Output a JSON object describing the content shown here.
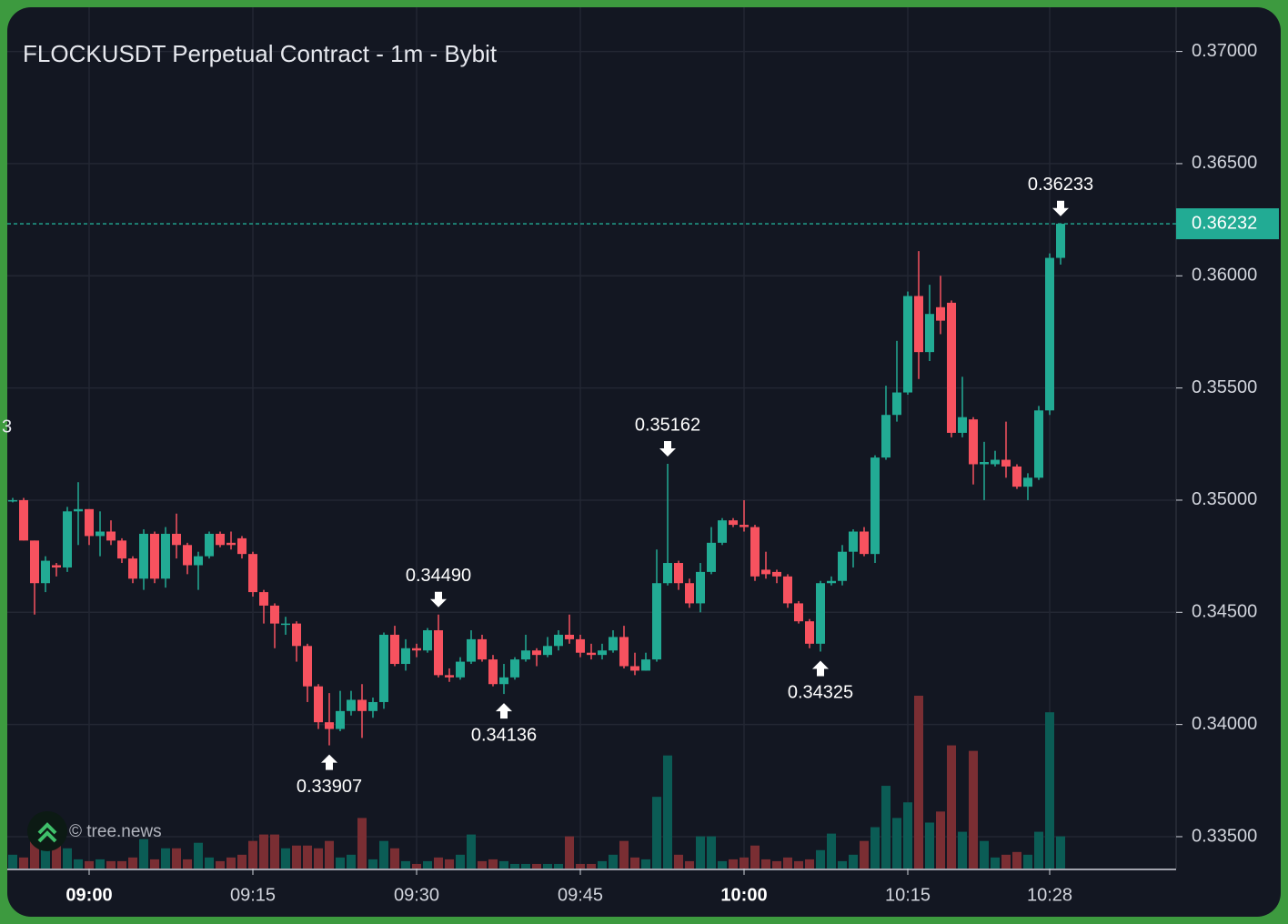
{
  "chart_data": {
    "type": "candlestick",
    "title": "FLOCKUSDT Perpetual Contract - 1m - Bybit",
    "watermark": "© tree.news",
    "left_edge_text": "3",
    "up_color": "#22ab94",
    "down_color": "#f7525f",
    "up_volume_color": "#0b5c55",
    "down_volume_color": "#7a2e33",
    "grid": true,
    "ylim": [
      0.33358,
      0.37197
    ],
    "yticks": [
      {
        "value": 0.335,
        "label": "0.33500"
      },
      {
        "value": 0.34,
        "label": "0.34000"
      },
      {
        "value": 0.345,
        "label": "0.34500"
      },
      {
        "value": 0.35,
        "label": "0.35000"
      },
      {
        "value": 0.355,
        "label": "0.35500"
      },
      {
        "value": 0.36,
        "label": "0.36000"
      },
      {
        "value": 0.365,
        "label": "0.36500"
      },
      {
        "value": 0.37,
        "label": "0.37000"
      }
    ],
    "xticks": [
      {
        "value": "09:00",
        "label": "09:00",
        "bold": true
      },
      {
        "value": "09:15",
        "label": "09:15"
      },
      {
        "value": "09:30",
        "label": "09:30"
      },
      {
        "value": "09:45",
        "label": "09:45"
      },
      {
        "value": "10:00",
        "label": "10:00",
        "bold": true
      },
      {
        "value": "10:15",
        "label": "10:15"
      },
      {
        "value": "10:28",
        "label": "10:28"
      }
    ],
    "last_price": {
      "value": 0.36232,
      "label": "0.36232"
    },
    "annotations": [
      {
        "value": 0.33907,
        "label": "0.33907",
        "x": "09:22",
        "position": "below"
      },
      {
        "value": 0.3449,
        "label": "0.34490",
        "x": "09:32",
        "position": "above"
      },
      {
        "value": 0.34136,
        "label": "0.34136",
        "x": "09:38",
        "position": "below"
      },
      {
        "value": 0.35162,
        "label": "0.35162",
        "x": "09:53",
        "position": "above"
      },
      {
        "value": 0.34325,
        "label": "0.34325",
        "x": "10:07",
        "position": "below"
      },
      {
        "value": 0.36233,
        "label": "0.36233",
        "x": "10:29",
        "position": "above"
      }
    ],
    "x": [
      "08:53",
      "08:54",
      "08:55",
      "08:56",
      "08:57",
      "08:58",
      "08:59",
      "09:00",
      "09:01",
      "09:02",
      "09:03",
      "09:04",
      "09:05",
      "09:06",
      "09:07",
      "09:08",
      "09:09",
      "09:10",
      "09:11",
      "09:12",
      "09:13",
      "09:14",
      "09:15",
      "09:16",
      "09:17",
      "09:18",
      "09:19",
      "09:20",
      "09:21",
      "09:22",
      "09:23",
      "09:24",
      "09:25",
      "09:26",
      "09:27",
      "09:28",
      "09:29",
      "09:30",
      "09:31",
      "09:32",
      "09:33",
      "09:34",
      "09:35",
      "09:36",
      "09:37",
      "09:38",
      "09:39",
      "09:40",
      "09:41",
      "09:42",
      "09:43",
      "09:44",
      "09:45",
      "09:46",
      "09:47",
      "09:48",
      "09:49",
      "09:50",
      "09:51",
      "09:52",
      "09:53",
      "09:54",
      "09:55",
      "09:56",
      "09:57",
      "09:58",
      "09:59",
      "10:00",
      "10:01",
      "10:02",
      "10:03",
      "10:04",
      "10:05",
      "10:06",
      "10:07",
      "10:08",
      "10:09",
      "10:10",
      "10:11",
      "10:12",
      "10:13",
      "10:14",
      "10:15",
      "10:16",
      "10:17",
      "10:18",
      "10:19",
      "10:20",
      "10:21",
      "10:22",
      "10:23",
      "10:24",
      "10:25",
      "10:26",
      "10:27",
      "10:28",
      "10:29"
    ],
    "open": [
      0.35,
      0.35,
      0.3482,
      0.3463,
      0.3471,
      0.347,
      0.3495,
      0.3496,
      0.3484,
      0.3486,
      0.3482,
      0.3474,
      0.3465,
      0.3485,
      0.3465,
      0.3485,
      0.348,
      0.3471,
      0.3475,
      0.3485,
      0.3481,
      0.3483,
      0.3476,
      0.3459,
      0.3453,
      0.3445,
      0.3445,
      0.3435,
      0.3417,
      0.3401,
      0.3398,
      0.3406,
      0.3411,
      0.3406,
      0.341,
      0.344,
      0.3427,
      0.3434,
      0.3433,
      0.3442,
      0.3422,
      0.3421,
      0.3428,
      0.3438,
      0.3429,
      0.3418,
      0.3421,
      0.3429,
      0.3433,
      0.3431,
      0.3435,
      0.344,
      0.3438,
      0.3432,
      0.3431,
      0.3433,
      0.3439,
      0.3426,
      0.3424,
      0.3429,
      0.3463,
      0.3472,
      0.3463,
      0.3454,
      0.3468,
      0.3481,
      0.3491,
      0.3489,
      0.3488,
      0.3469,
      0.3468,
      0.3466,
      0.3454,
      0.3446,
      0.3436,
      0.3463,
      0.3464,
      0.3477,
      0.3486,
      0.3476,
      0.3519,
      0.3538,
      0.3548,
      0.3591,
      0.3566,
      0.3586,
      0.3588,
      0.353,
      0.3536,
      0.3516,
      0.3516,
      0.3518,
      0.3515,
      0.3506,
      0.351,
      0.354,
      0.3608
    ],
    "high": [
      0.3501,
      0.3501,
      0.3482,
      0.3475,
      0.3472,
      0.3497,
      0.3508,
      0.3496,
      0.3495,
      0.3491,
      0.3483,
      0.3475,
      0.3487,
      0.3486,
      0.3488,
      0.3494,
      0.3481,
      0.3477,
      0.3486,
      0.3486,
      0.3486,
      0.3484,
      0.3477,
      0.346,
      0.3454,
      0.3448,
      0.3446,
      0.3436,
      0.3418,
      0.3414,
      0.3415,
      0.3415,
      0.3418,
      0.3412,
      0.3441,
      0.3444,
      0.3438,
      0.3436,
      0.3443,
      0.3449,
      0.3425,
      0.343,
      0.3442,
      0.344,
      0.3431,
      0.3427,
      0.343,
      0.344,
      0.3434,
      0.3439,
      0.3442,
      0.3449,
      0.344,
      0.3436,
      0.3436,
      0.3442,
      0.3444,
      0.3432,
      0.3432,
      0.3478,
      0.35162,
      0.3473,
      0.3465,
      0.3472,
      0.3488,
      0.3492,
      0.3492,
      0.35,
      0.3489,
      0.3477,
      0.3469,
      0.3467,
      0.3455,
      0.3447,
      0.3464,
      0.3466,
      0.348,
      0.3487,
      0.3488,
      0.352,
      0.3551,
      0.3571,
      0.3593,
      0.3611,
      0.3596,
      0.36,
      0.3589,
      0.3555,
      0.3537,
      0.3526,
      0.3522,
      0.3535,
      0.3516,
      0.3512,
      0.3542,
      0.361,
      0.36233
    ],
    "low": [
      0.3499,
      0.3482,
      0.3449,
      0.3459,
      0.3466,
      0.3468,
      0.348,
      0.348,
      0.3475,
      0.348,
      0.3472,
      0.3463,
      0.346,
      0.3463,
      0.3461,
      0.3474,
      0.3467,
      0.346,
      0.3474,
      0.3479,
      0.3478,
      0.3474,
      0.3457,
      0.3445,
      0.3434,
      0.344,
      0.3428,
      0.341,
      0.3398,
      0.33907,
      0.3397,
      0.3404,
      0.3394,
      0.3403,
      0.3407,
      0.3426,
      0.3424,
      0.343,
      0.3432,
      0.3421,
      0.3419,
      0.342,
      0.3427,
      0.3428,
      0.3417,
      0.34136,
      0.342,
      0.3428,
      0.3426,
      0.343,
      0.3433,
      0.3436,
      0.343,
      0.3429,
      0.3429,
      0.3432,
      0.3425,
      0.3422,
      0.3424,
      0.3428,
      0.3462,
      0.346,
      0.3452,
      0.345,
      0.3467,
      0.348,
      0.3488,
      0.3486,
      0.3464,
      0.3465,
      0.3463,
      0.3452,
      0.3445,
      0.3434,
      0.34325,
      0.3462,
      0.3462,
      0.347,
      0.3475,
      0.3472,
      0.3518,
      0.3535,
      0.3547,
      0.3554,
      0.3562,
      0.3574,
      0.3528,
      0.3528,
      0.3507,
      0.35,
      0.3515,
      0.351,
      0.3505,
      0.35,
      0.3509,
      0.3538,
      0.3605
    ],
    "close": [
      0.35,
      0.3482,
      0.3463,
      0.3473,
      0.347,
      0.3495,
      0.3496,
      0.3484,
      0.3486,
      0.3482,
      0.3474,
      0.3465,
      0.3485,
      0.3465,
      0.3485,
      0.348,
      0.3471,
      0.3475,
      0.3485,
      0.348,
      0.348,
      0.3476,
      0.3459,
      0.3453,
      0.3445,
      0.3445,
      0.3435,
      0.3417,
      0.3401,
      0.3398,
      0.3406,
      0.3411,
      0.3406,
      0.341,
      0.344,
      0.3427,
      0.3434,
      0.3433,
      0.3442,
      0.3422,
      0.3421,
      0.3428,
      0.3438,
      0.3429,
      0.3418,
      0.3421,
      0.3429,
      0.3433,
      0.3431,
      0.3435,
      0.344,
      0.3438,
      0.3432,
      0.3431,
      0.3433,
      0.3439,
      0.3426,
      0.3424,
      0.3429,
      0.3463,
      0.3472,
      0.3463,
      0.3454,
      0.3468,
      0.3481,
      0.3491,
      0.3489,
      0.3488,
      0.3466,
      0.3467,
      0.3466,
      0.3454,
      0.3446,
      0.3436,
      0.3463,
      0.3464,
      0.3477,
      0.3486,
      0.3476,
      0.3519,
      0.3538,
      0.3548,
      0.3591,
      0.3566,
      0.3583,
      0.358,
      0.353,
      0.3537,
      0.3516,
      0.3517,
      0.3518,
      0.3515,
      0.3506,
      0.351,
      0.354,
      0.3608,
      0.36232
    ],
    "volume": [
      15,
      12,
      30,
      22,
      25,
      22,
      10,
      8,
      10,
      8,
      8,
      12,
      32,
      10,
      22,
      22,
      10,
      28,
      12,
      8,
      12,
      15,
      30,
      37,
      37,
      22,
      25,
      25,
      22,
      30,
      12,
      15,
      55,
      10,
      30,
      22,
      8,
      5,
      8,
      12,
      10,
      15,
      37,
      8,
      10,
      8,
      5,
      5,
      5,
      5,
      5,
      35,
      5,
      5,
      8,
      15,
      30,
      12,
      10,
      78,
      123,
      15,
      8,
      35,
      35,
      8,
      10,
      12,
      25,
      10,
      8,
      12,
      8,
      10,
      20,
      38,
      8,
      15,
      30,
      45,
      90,
      55,
      72,
      188,
      50,
      62,
      134,
      40,
      128,
      30,
      12,
      15,
      18,
      15,
      40,
      170,
      35
    ]
  }
}
